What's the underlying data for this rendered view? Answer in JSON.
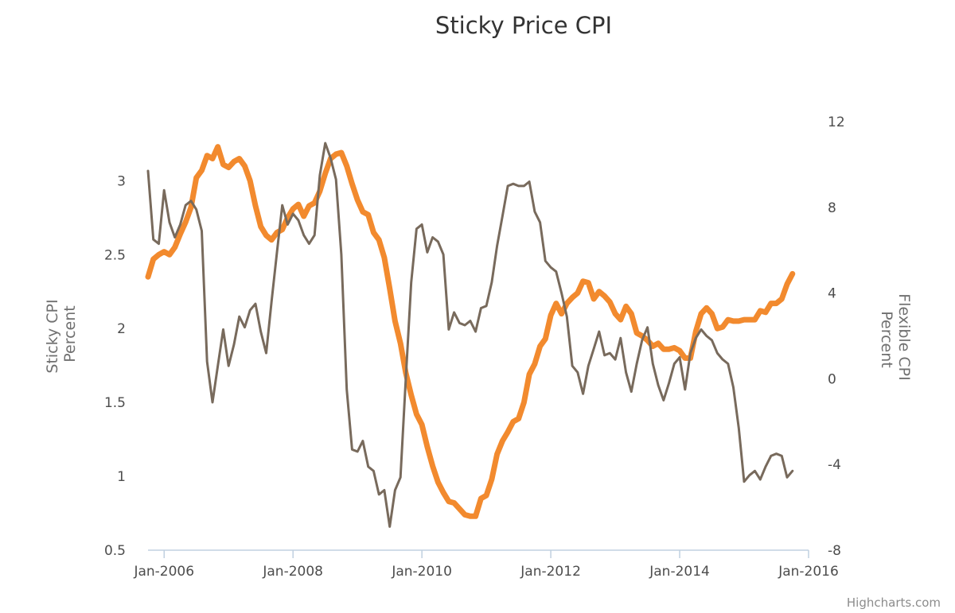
{
  "chart_data": {
    "type": "line",
    "title": "Sticky Price CPI",
    "credits": "Highcharts.com",
    "x_ticks": [
      "Jan-2006",
      "Jan-2008",
      "Jan-2010",
      "Jan-2012",
      "Jan-2014",
      "Jan-2016"
    ],
    "x_range": [
      "2005-10",
      "2016-01"
    ],
    "y_axes": [
      {
        "id": "left",
        "title": [
          "Sticky CPI",
          "Percent"
        ],
        "range": [
          0.5,
          3.4
        ],
        "ticks": [
          "0.5",
          "1",
          "1.5",
          "2",
          "2.5",
          "3"
        ],
        "tick_values": [
          0.5,
          1,
          1.5,
          2,
          2.5,
          3
        ]
      },
      {
        "id": "right",
        "title": [
          "Flexible CPI",
          "Percent"
        ],
        "range": [
          -8,
          12
        ],
        "ticks": [
          "-8",
          "-4",
          "0",
          "4",
          "8",
          "12"
        ],
        "tick_values": [
          -8,
          -4,
          0,
          4,
          8,
          12
        ]
      }
    ],
    "series": [
      {
        "axis": "left",
        "color": "#f28a2e",
        "points": [
          [
            "2005-10",
            2.35
          ],
          [
            "2005-11",
            2.47
          ],
          [
            "2005-12",
            2.5
          ],
          [
            "2006-01",
            2.52
          ],
          [
            "2006-02",
            2.5
          ],
          [
            "2006-03",
            2.55
          ],
          [
            "2006-04",
            2.64
          ],
          [
            "2006-05",
            2.72
          ],
          [
            "2006-06",
            2.82
          ],
          [
            "2006-07",
            3.02
          ],
          [
            "2006-08",
            3.07
          ],
          [
            "2006-09",
            3.17
          ],
          [
            "2006-10",
            3.15
          ],
          [
            "2006-11",
            3.23
          ],
          [
            "2006-12",
            3.11
          ],
          [
            "2007-01",
            3.09
          ],
          [
            "2007-02",
            3.13
          ],
          [
            "2007-03",
            3.15
          ],
          [
            "2007-04",
            3.1
          ],
          [
            "2007-05",
            3.0
          ],
          [
            "2007-06",
            2.83
          ],
          [
            "2007-07",
            2.69
          ],
          [
            "2007-08",
            2.63
          ],
          [
            "2007-09",
            2.6
          ],
          [
            "2007-10",
            2.65
          ],
          [
            "2007-11",
            2.67
          ],
          [
            "2007-12",
            2.75
          ],
          [
            "2008-01",
            2.81
          ],
          [
            "2008-02",
            2.84
          ],
          [
            "2008-03",
            2.76
          ],
          [
            "2008-04",
            2.83
          ],
          [
            "2008-05",
            2.85
          ],
          [
            "2008-06",
            2.93
          ],
          [
            "2008-07",
            3.05
          ],
          [
            "2008-08",
            3.15
          ],
          [
            "2008-09",
            3.18
          ],
          [
            "2008-10",
            3.19
          ],
          [
            "2008-11",
            3.1
          ],
          [
            "2008-12",
            2.98
          ],
          [
            "2009-01",
            2.87
          ],
          [
            "2009-02",
            2.79
          ],
          [
            "2009-03",
            2.77
          ],
          [
            "2009-04",
            2.65
          ],
          [
            "2009-05",
            2.6
          ],
          [
            "2009-06",
            2.48
          ],
          [
            "2009-07",
            2.27
          ],
          [
            "2009-08",
            2.05
          ],
          [
            "2009-09",
            1.9
          ],
          [
            "2009-10",
            1.7
          ],
          [
            "2009-11",
            1.55
          ],
          [
            "2009-12",
            1.42
          ],
          [
            "2010-01",
            1.35
          ],
          [
            "2010-02",
            1.2
          ],
          [
            "2010-03",
            1.07
          ],
          [
            "2010-04",
            0.96
          ],
          [
            "2010-05",
            0.89
          ],
          [
            "2010-06",
            0.83
          ],
          [
            "2010-07",
            0.82
          ],
          [
            "2010-08",
            0.78
          ],
          [
            "2010-09",
            0.74
          ],
          [
            "2010-10",
            0.73
          ],
          [
            "2010-11",
            0.73
          ],
          [
            "2010-12",
            0.85
          ],
          [
            "2011-01",
            0.87
          ],
          [
            "2011-02",
            0.98
          ],
          [
            "2011-03",
            1.15
          ],
          [
            "2011-04",
            1.24
          ],
          [
            "2011-05",
            1.3
          ],
          [
            "2011-06",
            1.37
          ],
          [
            "2011-07",
            1.39
          ],
          [
            "2011-08",
            1.5
          ],
          [
            "2011-09",
            1.69
          ],
          [
            "2011-10",
            1.76
          ],
          [
            "2011-11",
            1.88
          ],
          [
            "2011-12",
            1.93
          ],
          [
            "2012-01",
            2.09
          ],
          [
            "2012-02",
            2.17
          ],
          [
            "2012-03",
            2.1
          ],
          [
            "2012-04",
            2.17
          ],
          [
            "2012-05",
            2.21
          ],
          [
            "2012-06",
            2.24
          ],
          [
            "2012-07",
            2.32
          ],
          [
            "2012-08",
            2.31
          ],
          [
            "2012-09",
            2.2
          ],
          [
            "2012-10",
            2.25
          ],
          [
            "2012-11",
            2.22
          ],
          [
            "2012-12",
            2.18
          ],
          [
            "2013-01",
            2.1
          ],
          [
            "2013-02",
            2.06
          ],
          [
            "2013-03",
            2.15
          ],
          [
            "2013-04",
            2.1
          ],
          [
            "2013-05",
            1.97
          ],
          [
            "2013-06",
            1.95
          ],
          [
            "2013-07",
            1.92
          ],
          [
            "2013-08",
            1.88
          ],
          [
            "2013-09",
            1.9
          ],
          [
            "2013-10",
            1.86
          ],
          [
            "2013-11",
            1.86
          ],
          [
            "2013-12",
            1.87
          ],
          [
            "2014-01",
            1.85
          ],
          [
            "2014-02",
            1.8
          ],
          [
            "2014-03",
            1.8
          ],
          [
            "2014-04",
            1.98
          ],
          [
            "2014-05",
            2.1
          ],
          [
            "2014-06",
            2.14
          ],
          [
            "2014-07",
            2.1
          ],
          [
            "2014-08",
            2.0
          ],
          [
            "2014-09",
            2.01
          ],
          [
            "2014-10",
            2.06
          ],
          [
            "2014-11",
            2.05
          ],
          [
            "2014-12",
            2.05
          ],
          [
            "2015-01",
            2.06
          ],
          [
            "2015-02",
            2.06
          ],
          [
            "2015-03",
            2.06
          ],
          [
            "2015-04",
            2.12
          ],
          [
            "2015-05",
            2.11
          ],
          [
            "2015-06",
            2.17
          ],
          [
            "2015-07",
            2.17
          ],
          [
            "2015-08",
            2.2
          ],
          [
            "2015-09",
            2.3
          ],
          [
            "2015-10",
            2.37
          ]
        ]
      },
      {
        "axis": "right",
        "color": "#786a5c",
        "points": [
          [
            "2005-10",
            9.7
          ],
          [
            "2005-11",
            6.5
          ],
          [
            "2005-12",
            6.3
          ],
          [
            "2006-01",
            8.8
          ],
          [
            "2006-02",
            7.3
          ],
          [
            "2006-03",
            6.6
          ],
          [
            "2006-04",
            7.2
          ],
          [
            "2006-05",
            8.1
          ],
          [
            "2006-06",
            8.3
          ],
          [
            "2006-07",
            7.9
          ],
          [
            "2006-08",
            6.9
          ],
          [
            "2006-09",
            0.8
          ],
          [
            "2006-10",
            -1.1
          ],
          [
            "2006-11",
            0.6
          ],
          [
            "2006-12",
            2.3
          ],
          [
            "2007-01",
            0.6
          ],
          [
            "2007-02",
            1.6
          ],
          [
            "2007-03",
            2.9
          ],
          [
            "2007-04",
            2.4
          ],
          [
            "2007-05",
            3.2
          ],
          [
            "2007-06",
            3.5
          ],
          [
            "2007-07",
            2.2
          ],
          [
            "2007-08",
            1.2
          ],
          [
            "2007-09",
            3.6
          ],
          [
            "2007-10",
            5.9
          ],
          [
            "2007-11",
            8.1
          ],
          [
            "2007-12",
            7.2
          ],
          [
            "2008-01",
            7.7
          ],
          [
            "2008-02",
            7.4
          ],
          [
            "2008-03",
            6.7
          ],
          [
            "2008-04",
            6.3
          ],
          [
            "2008-05",
            6.7
          ],
          [
            "2008-06",
            9.5
          ],
          [
            "2008-07",
            11.0
          ],
          [
            "2008-08",
            10.3
          ],
          [
            "2008-09",
            9.3
          ],
          [
            "2008-10",
            5.8
          ],
          [
            "2008-11",
            -0.5
          ],
          [
            "2008-12",
            -3.3
          ],
          [
            "2009-01",
            -3.4
          ],
          [
            "2009-02",
            -2.9
          ],
          [
            "2009-03",
            -4.1
          ],
          [
            "2009-04",
            -4.3
          ],
          [
            "2009-05",
            -5.4
          ],
          [
            "2009-06",
            -5.2
          ],
          [
            "2009-07",
            -6.9
          ],
          [
            "2009-08",
            -5.2
          ],
          [
            "2009-09",
            -4.6
          ],
          [
            "2009-10",
            0.0
          ],
          [
            "2009-11",
            4.5
          ],
          [
            "2009-12",
            7.0
          ],
          [
            "2010-01",
            7.2
          ],
          [
            "2010-02",
            5.9
          ],
          [
            "2010-03",
            6.6
          ],
          [
            "2010-04",
            6.4
          ],
          [
            "2010-05",
            5.8
          ],
          [
            "2010-06",
            2.3
          ],
          [
            "2010-07",
            3.1
          ],
          [
            "2010-08",
            2.6
          ],
          [
            "2010-09",
            2.5
          ],
          [
            "2010-10",
            2.7
          ],
          [
            "2010-11",
            2.2
          ],
          [
            "2010-12",
            3.3
          ],
          [
            "2011-01",
            3.4
          ],
          [
            "2011-02",
            4.5
          ],
          [
            "2011-03",
            6.2
          ],
          [
            "2011-04",
            7.6
          ],
          [
            "2011-05",
            9.0
          ],
          [
            "2011-06",
            9.1
          ],
          [
            "2011-07",
            9.0
          ],
          [
            "2011-08",
            9.0
          ],
          [
            "2011-09",
            9.2
          ],
          [
            "2011-10",
            7.8
          ],
          [
            "2011-11",
            7.3
          ],
          [
            "2011-12",
            5.5
          ],
          [
            "2012-01",
            5.2
          ],
          [
            "2012-02",
            5.0
          ],
          [
            "2012-03",
            4.0
          ],
          [
            "2012-04",
            2.9
          ],
          [
            "2012-05",
            0.6
          ],
          [
            "2012-06",
            0.3
          ],
          [
            "2012-07",
            -0.7
          ],
          [
            "2012-08",
            0.6
          ],
          [
            "2012-09",
            1.4
          ],
          [
            "2012-10",
            2.2
          ],
          [
            "2012-11",
            1.1
          ],
          [
            "2012-12",
            1.2
          ],
          [
            "2013-01",
            0.9
          ],
          [
            "2013-02",
            1.9
          ],
          [
            "2013-03",
            0.3
          ],
          [
            "2013-04",
            -0.6
          ],
          [
            "2013-05",
            0.7
          ],
          [
            "2013-06",
            1.8
          ],
          [
            "2013-07",
            2.4
          ],
          [
            "2013-08",
            0.7
          ],
          [
            "2013-09",
            -0.3
          ],
          [
            "2013-10",
            -1.0
          ],
          [
            "2013-11",
            -0.2
          ],
          [
            "2013-12",
            0.7
          ],
          [
            "2014-01",
            1.0
          ],
          [
            "2014-02",
            -0.5
          ],
          [
            "2014-03",
            1.2
          ],
          [
            "2014-04",
            1.9
          ],
          [
            "2014-05",
            2.3
          ],
          [
            "2014-06",
            2.0
          ],
          [
            "2014-07",
            1.8
          ],
          [
            "2014-08",
            1.2
          ],
          [
            "2014-09",
            0.9
          ],
          [
            "2014-10",
            0.7
          ],
          [
            "2014-11",
            -0.4
          ],
          [
            "2014-12",
            -2.3
          ],
          [
            "2015-01",
            -4.8
          ],
          [
            "2015-02",
            -4.5
          ],
          [
            "2015-03",
            -4.3
          ],
          [
            "2015-04",
            -4.7
          ],
          [
            "2015-05",
            -4.1
          ],
          [
            "2015-06",
            -3.6
          ],
          [
            "2015-07",
            -3.5
          ],
          [
            "2015-08",
            -3.6
          ],
          [
            "2015-09",
            -4.6
          ],
          [
            "2015-10",
            -4.3
          ]
        ]
      }
    ]
  }
}
